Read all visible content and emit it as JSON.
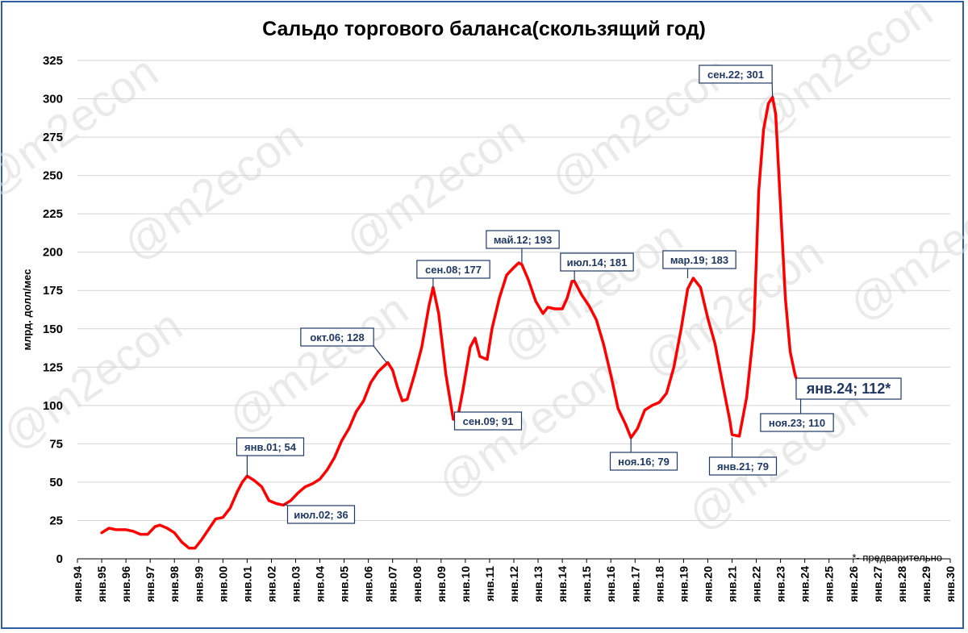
{
  "watermark": "@m2econ",
  "note": "*- предварительно",
  "chart_data": {
    "type": "line",
    "title": "Сальдо торгового баланса(скользящий год)",
    "xlabel": "",
    "ylabel": "млрд. долл/мес",
    "ylim": [
      0,
      325
    ],
    "yticks": [
      0,
      25,
      50,
      75,
      100,
      125,
      150,
      175,
      200,
      225,
      250,
      275,
      300,
      325
    ],
    "xlim": [
      1994,
      2030
    ],
    "xtick_labels": [
      "янв.94",
      "янв.95",
      "янв.96",
      "янв.97",
      "янв.98",
      "янв.99",
      "янв.00",
      "янв.01",
      "янв.02",
      "янв.03",
      "янв.04",
      "янв.05",
      "янв.06",
      "янв.07",
      "янв.08",
      "янв.09",
      "янв.10",
      "янв.11",
      "янв.12",
      "янв.13",
      "янв.14",
      "янв.15",
      "янв.16",
      "янв.17",
      "янв.18",
      "янв.19",
      "янв.20",
      "янв.21",
      "янв.22",
      "янв.23",
      "янв.24",
      "янв.25",
      "янв.26",
      "янв.27",
      "янв.28",
      "янв.29",
      "янв.30"
    ],
    "grid": true,
    "legend": "none",
    "line_color": "#ff0000",
    "series": [
      {
        "x": [
          1995.0,
          1995.3,
          1995.6,
          1996.0,
          1996.3,
          1996.6,
          1996.9,
          1997.2,
          1997.4,
          1997.7,
          1998.0,
          1998.3,
          1998.6,
          1998.85,
          1999.1,
          1999.4,
          1999.7,
          2000.0,
          2000.3,
          2000.6,
          2000.8,
          2001.0,
          2001.3,
          2001.6,
          2001.9,
          2002.2,
          2002.5,
          2002.8,
          2003.1,
          2003.4,
          2003.7,
          2004.0,
          2004.3,
          2004.6,
          2004.9,
          2005.2,
          2005.5,
          2005.8,
          2006.1,
          2006.4,
          2006.6,
          2006.8,
          2007.0,
          2007.2,
          2007.4,
          2007.6,
          2007.9,
          2008.2,
          2008.5,
          2008.67,
          2008.9,
          2009.2,
          2009.5,
          2009.67,
          2009.9,
          2010.2,
          2010.4,
          2010.6,
          2010.9,
          2011.1,
          2011.4,
          2011.7,
          2012.0,
          2012.2,
          2012.33,
          2012.6,
          2012.9,
          2013.2,
          2013.4,
          2013.7,
          2014.0,
          2014.2,
          2014.4,
          2014.5,
          2014.8,
          2015.1,
          2015.4,
          2015.7,
          2016.0,
          2016.3,
          2016.6,
          2016.83,
          2017.1,
          2017.4,
          2017.7,
          2018.0,
          2018.3,
          2018.6,
          2018.9,
          2019.17,
          2019.4,
          2019.7,
          2020.0,
          2020.3,
          2020.6,
          2020.9,
          2021.0,
          2021.3,
          2021.6,
          2021.9,
          2022.1,
          2022.3,
          2022.5,
          2022.67,
          2022.8,
          2023.0,
          2023.2,
          2023.4,
          2023.6,
          2023.83,
          2024.0
        ],
        "y": [
          17,
          20,
          19,
          19,
          18,
          16,
          16,
          21,
          22,
          20,
          17,
          11,
          7,
          7,
          12,
          19,
          26,
          27,
          33,
          44,
          50,
          54,
          51,
          47,
          38,
          36,
          35,
          38,
          43,
          47,
          49,
          52,
          58,
          66,
          77,
          85,
          96,
          103,
          115,
          122,
          125,
          128,
          123,
          112,
          103,
          104,
          120,
          138,
          165,
          177,
          160,
          120,
          91,
          91,
          110,
          138,
          144,
          132,
          130,
          150,
          170,
          185,
          190,
          193,
          192,
          182,
          168,
          160,
          164,
          163,
          163,
          170,
          181,
          181,
          172,
          165,
          156,
          140,
          120,
          98,
          88,
          79,
          85,
          97,
          100,
          102,
          108,
          125,
          150,
          176,
          183,
          177,
          157,
          140,
          115,
          91,
          81,
          80,
          105,
          150,
          240,
          280,
          297,
          301,
          290,
          230,
          170,
          135,
          120,
          110,
          112
        ]
      }
    ],
    "annotations": [
      {
        "label": "янв.01; 54",
        "x": 2001.0,
        "y": 54
      },
      {
        "label": "июл.02; 36",
        "x": 2002.5,
        "y": 36
      },
      {
        "label": "окт.06; 128",
        "x": 2006.75,
        "y": 128
      },
      {
        "label": "сен.08; 177",
        "x": 2008.67,
        "y": 177
      },
      {
        "label": "сен.09; 91",
        "x": 2009.67,
        "y": 91
      },
      {
        "label": "май.12; 193",
        "x": 2012.33,
        "y": 193
      },
      {
        "label": "июл.14; 181",
        "x": 2014.5,
        "y": 181
      },
      {
        "label": "ноя.16; 79",
        "x": 2016.83,
        "y": 79
      },
      {
        "label": "мар.19; 183",
        "x": 2019.17,
        "y": 183
      },
      {
        "label": "янв.21; 79",
        "x": 2021.0,
        "y": 79
      },
      {
        "label": "сен.22; 301",
        "x": 2022.67,
        "y": 301
      },
      {
        "label": "ноя.23; 110",
        "x": 2023.83,
        "y": 110
      },
      {
        "label": "янв.24; 112*",
        "x": 2024.0,
        "y": 112
      }
    ]
  }
}
